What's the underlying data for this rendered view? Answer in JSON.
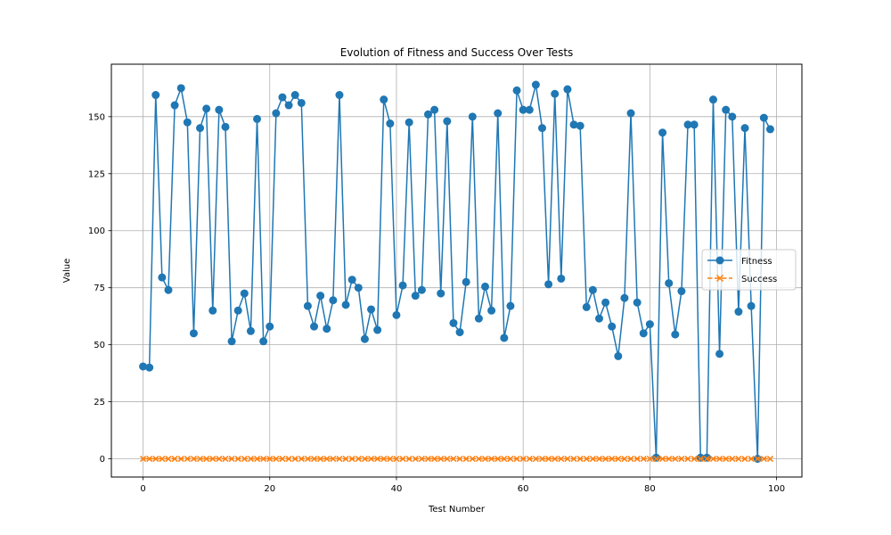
{
  "chart_data": {
    "type": "line",
    "title": "Evolution of Fitness and Success Over Tests",
    "xlabel": "Test Number",
    "ylabel": "Value",
    "xlim": [
      -5,
      104
    ],
    "ylim": [
      -8,
      173
    ],
    "xticks": [
      0,
      20,
      40,
      60,
      80,
      100
    ],
    "yticks": [
      0,
      25,
      50,
      75,
      100,
      125,
      150
    ],
    "grid": true,
    "legend_position": "center-right",
    "series": [
      {
        "name": "Fitness",
        "color": "#1f77b4",
        "marker": "circle",
        "linestyle": "solid",
        "x": [
          0,
          1,
          2,
          3,
          4,
          5,
          6,
          7,
          8,
          9,
          10,
          11,
          12,
          13,
          14,
          15,
          16,
          17,
          18,
          19,
          20,
          21,
          22,
          23,
          24,
          25,
          26,
          27,
          28,
          29,
          30,
          31,
          32,
          33,
          34,
          35,
          36,
          37,
          38,
          39,
          40,
          41,
          42,
          43,
          44,
          45,
          46,
          47,
          48,
          49,
          50,
          51,
          52,
          53,
          54,
          55,
          56,
          57,
          58,
          59,
          60,
          61,
          62,
          63,
          64,
          65,
          66,
          67,
          68,
          69,
          70,
          71,
          72,
          73,
          74,
          75,
          76,
          77,
          78,
          79,
          80,
          81,
          82,
          83,
          84,
          85,
          86,
          87,
          88,
          89,
          90,
          91,
          92,
          93,
          94,
          95,
          96,
          97,
          98,
          99
        ],
        "values": [
          40.5,
          40,
          159.5,
          79.5,
          74,
          155,
          162.5,
          147.5,
          55,
          145,
          153.5,
          65,
          153,
          145.5,
          51.5,
          65,
          72.5,
          56,
          149,
          51.5,
          58,
          151.5,
          158.5,
          155,
          159.5,
          156,
          67,
          58,
          71.5,
          57,
          69.5,
          159.5,
          67.5,
          78.5,
          75,
          52.5,
          65.5,
          56.5,
          157.5,
          147,
          63,
          76,
          147.5,
          71.5,
          74,
          151,
          153,
          72.5,
          148,
          59.5,
          55.5,
          77.5,
          150,
          61.5,
          75.5,
          65,
          151.5,
          53,
          67,
          161.5,
          153,
          153,
          164,
          145,
          76.5,
          160,
          79,
          162,
          146.5,
          146,
          66.5,
          74,
          61.5,
          68.5,
          58,
          45,
          70.5,
          151.5,
          68.5,
          55,
          59,
          0.5,
          143,
          77,
          54.5,
          73.5,
          146.5,
          146.5,
          0.5,
          0.5,
          157.5,
          46,
          153,
          150,
          64.5,
          145,
          67,
          0,
          149.5,
          144.5
        ]
      },
      {
        "name": "Success",
        "color": "#ff7f0e",
        "marker": "x",
        "linestyle": "dashed",
        "x": [
          0,
          1,
          2,
          3,
          4,
          5,
          6,
          7,
          8,
          9,
          10,
          11,
          12,
          13,
          14,
          15,
          16,
          17,
          18,
          19,
          20,
          21,
          22,
          23,
          24,
          25,
          26,
          27,
          28,
          29,
          30,
          31,
          32,
          33,
          34,
          35,
          36,
          37,
          38,
          39,
          40,
          41,
          42,
          43,
          44,
          45,
          46,
          47,
          48,
          49,
          50,
          51,
          52,
          53,
          54,
          55,
          56,
          57,
          58,
          59,
          60,
          61,
          62,
          63,
          64,
          65,
          66,
          67,
          68,
          69,
          70,
          71,
          72,
          73,
          74,
          75,
          76,
          77,
          78,
          79,
          80,
          81,
          82,
          83,
          84,
          85,
          86,
          87,
          88,
          89,
          90,
          91,
          92,
          93,
          94,
          95,
          96,
          97,
          98,
          99
        ],
        "values": [
          0,
          0,
          0,
          0,
          0,
          0,
          0,
          0,
          0,
          0,
          0,
          0,
          0,
          0,
          0,
          0,
          0,
          0,
          0,
          0,
          0,
          0,
          0,
          0,
          0,
          0,
          0,
          0,
          0,
          0,
          0,
          0,
          0,
          0,
          0,
          0,
          0,
          0,
          0,
          0,
          0,
          0,
          0,
          0,
          0,
          0,
          0,
          0,
          0,
          0,
          0,
          0,
          0,
          0,
          0,
          0,
          0,
          0,
          0,
          0,
          0,
          0,
          0,
          0,
          0,
          0,
          0,
          0,
          0,
          0,
          0,
          0,
          0,
          0,
          0,
          0,
          0,
          0,
          0,
          0,
          0,
          0,
          0,
          0,
          0,
          0,
          0,
          0,
          0,
          0,
          0,
          0,
          0,
          0,
          0,
          0,
          0,
          0,
          0,
          0
        ]
      }
    ]
  }
}
